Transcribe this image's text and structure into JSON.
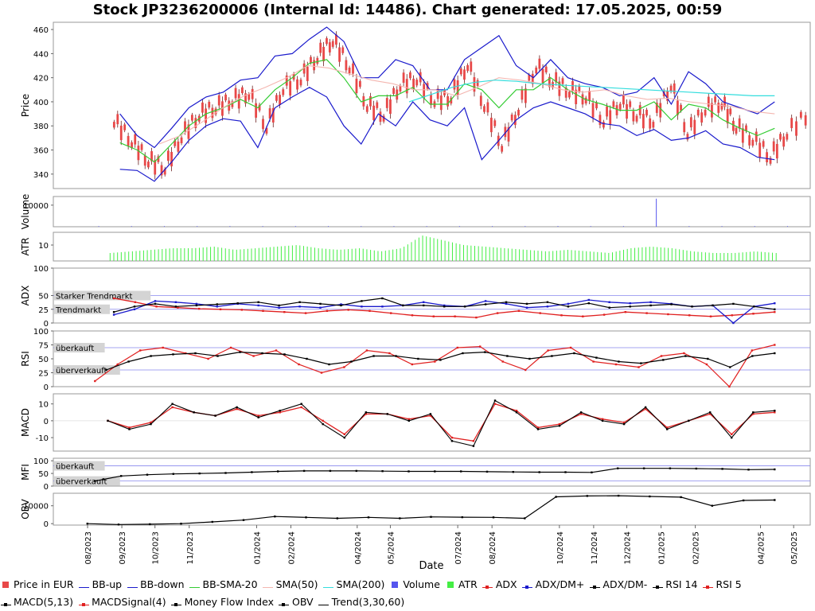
{
  "title": "Stock JP3236200006 (Internal Id: 14486). Chart generated: 17.05.2025, 00:59",
  "x_axis_label": "Date",
  "x_ticks": [
    "08/2023",
    "09/2023",
    "10/2023",
    "11/2023",
    "01/2024",
    "02/2024",
    "04/2024",
    "05/2024",
    "07/2024",
    "08/2024",
    "10/2024",
    "11/2024",
    "12/2024",
    "01/2025",
    "02/2025",
    "04/2025",
    "05/2025"
  ],
  "panels": {
    "price": {
      "ylabel": "Price",
      "ticks": [
        "340",
        "360",
        "380",
        "400",
        "420",
        "440",
        "460"
      ]
    },
    "volume": {
      "ylabel": "Volume",
      "ticks": [
        "10000"
      ]
    },
    "atr": {
      "ylabel": "ATR",
      "ticks": [
        "10"
      ]
    },
    "adx": {
      "ylabel": "ADX",
      "ticks": [
        "0",
        "25",
        "50",
        "100"
      ],
      "annotations": [
        "Starker Trendmarkt",
        "Trendmarkt"
      ]
    },
    "rsi": {
      "ylabel": "RSI",
      "ticks": [
        "0",
        "25",
        "50",
        "75",
        "100"
      ],
      "annotations": [
        "überkauft",
        "überverkauft"
      ]
    },
    "macd": {
      "ylabel": "MACD",
      "ticks": [
        "-10",
        "0",
        "10"
      ]
    },
    "mfi": {
      "ylabel": "MFI",
      "ticks": [
        "0",
        "50",
        "100"
      ],
      "annotations": [
        "überkauft",
        "überverkauft"
      ]
    },
    "obv": {
      "ylabel": "OBV",
      "ticks": [
        "0",
        "10000"
      ]
    }
  },
  "legend": [
    {
      "label": "Price in EUR",
      "color": "#e84848",
      "kind": "box"
    },
    {
      "label": "BB-up",
      "color": "#1a1acc",
      "kind": "line"
    },
    {
      "label": "BB-down",
      "color": "#1a1acc",
      "kind": "line"
    },
    {
      "label": "BB-SMA-20",
      "color": "#33cc33",
      "kind": "line"
    },
    {
      "label": "SMA(50)",
      "color": "#f4b6b0",
      "kind": "line"
    },
    {
      "label": "SMA(200)",
      "color": "#33dddd",
      "kind": "line"
    },
    {
      "label": "Volume",
      "color": "#5555ee",
      "kind": "box"
    },
    {
      "label": "ATR",
      "color": "#44ee44",
      "kind": "box"
    },
    {
      "label": "ADX",
      "color": "#e02020",
      "kind": "marker"
    },
    {
      "label": "ADX/DM+",
      "color": "#1a1acc",
      "kind": "marker"
    },
    {
      "label": "ADX/DM-",
      "color": "#000000",
      "kind": "marker"
    },
    {
      "label": "RSI 14",
      "color": "#000000",
      "kind": "marker"
    },
    {
      "label": "RSI 5",
      "color": "#e02020",
      "kind": "marker"
    },
    {
      "label": "MACD(5,13)",
      "color": "#000000",
      "kind": "marker"
    },
    {
      "label": "MACDSignal(4)",
      "color": "#e02020",
      "kind": "marker"
    },
    {
      "label": "Money Flow Index",
      "color": "#000000",
      "kind": "marker"
    },
    {
      "label": "OBV",
      "color": "#000000",
      "kind": "marker"
    },
    {
      "label": "Trend(3,30,60)",
      "color": "#000000",
      "kind": "line"
    }
  ],
  "chart_data": {
    "type": "line",
    "title": "Stock JP3236200006 (Internal Id: 14486). Chart generated: 17.05.2025, 00:59",
    "xlabel": "Date",
    "x_range": [
      "2023-07-01",
      "2025-05-16"
    ],
    "price_ylim": [
      328,
      466
    ],
    "close_series": {
      "dates": [
        "2023-08-25",
        "2023-09-10",
        "2023-09-25",
        "2023-10-10",
        "2023-10-25",
        "2023-11-10",
        "2023-11-25",
        "2023-12-10",
        "2023-12-25",
        "2024-01-10",
        "2024-01-25",
        "2024-02-10",
        "2024-02-25",
        "2024-03-10",
        "2024-03-25",
        "2024-04-10",
        "2024-04-25",
        "2024-05-10",
        "2024-05-25",
        "2024-06-10",
        "2024-06-25",
        "2024-07-10",
        "2024-07-25",
        "2024-08-10",
        "2024-08-25",
        "2024-09-10",
        "2024-09-25",
        "2024-10-10",
        "2024-10-25",
        "2024-11-10",
        "2024-11-25",
        "2024-12-10",
        "2024-12-25",
        "2025-01-10",
        "2025-01-25",
        "2025-02-10",
        "2025-02-25",
        "2025-03-10",
        "2025-03-25",
        "2025-04-10",
        "2025-04-25",
        "2025-05-16"
      ],
      "values": [
        385,
        368,
        352,
        346,
        372,
        390,
        396,
        402,
        408,
        380,
        412,
        420,
        438,
        452,
        430,
        398,
        390,
        415,
        420,
        402,
        405,
        432,
        398,
        365,
        395,
        430,
        418,
        410,
        405,
        385,
        400,
        390,
        385,
        415,
        375,
        395,
        400,
        380,
        370,
        355,
        375,
        392
      ]
    },
    "series": [
      {
        "name": "BB-up",
        "values": [
          390,
          372,
          362,
          378,
          395,
          404,
          408,
          418,
          420,
          438,
          440,
          452,
          462,
          450,
          420,
          420,
          435,
          430,
          410,
          410,
          435,
          445,
          455,
          430,
          420,
          435,
          420,
          415,
          412,
          405,
          408,
          420,
          398,
          425,
          415,
          400,
          395,
          390,
          400
        ]
      },
      {
        "name": "BB-down",
        "values": [
          344,
          343,
          334,
          350,
          368,
          380,
          386,
          384,
          362,
          395,
          404,
          412,
          404,
          380,
          365,
          390,
          380,
          400,
          385,
          380,
          395,
          352,
          368,
          385,
          395,
          400,
          395,
          390,
          382,
          380,
          372,
          377,
          368,
          370,
          376,
          365,
          362,
          354,
          352
        ]
      },
      {
        "name": "BB-SMA-20",
        "values": [
          366,
          360,
          350,
          365,
          380,
          390,
          395,
          402,
          395,
          410,
          420,
          432,
          435,
          420,
          400,
          405,
          405,
          412,
          398,
          398,
          415,
          410,
          395,
          410,
          410,
          420,
          410,
          402,
          398,
          393,
          393,
          400,
          385,
          398,
          395,
          385,
          378,
          372,
          378
        ]
      },
      {
        "name": "SMA(50)",
        "values": [
          365,
          372,
          383,
          395,
          405,
          412,
          420,
          430,
          428,
          423,
          418,
          415,
          410,
          410,
          405,
          412,
          420,
          418,
          415,
          410,
          408,
          410,
          405,
          402,
          403,
          400,
          398,
          396,
          392,
          390
        ]
      },
      {
        "name": "SMA(200)",
        "values": [
          400,
          406,
          412,
          416,
          418,
          417,
          415,
          414,
          413,
          412,
          411,
          410,
          409,
          408,
          407,
          406,
          405,
          405
        ]
      },
      {
        "name": "ADX",
        "values": [
          45,
          38,
          30,
          28,
          26,
          25,
          24,
          22,
          20,
          18,
          22,
          24,
          22,
          18,
          14,
          12,
          12,
          10,
          18,
          22,
          18,
          14,
          12,
          15,
          20,
          18,
          16,
          14,
          12,
          14,
          17,
          20
        ]
      },
      {
        "name": "ADX/DM+",
        "values": [
          15,
          25,
          40,
          38,
          35,
          30,
          35,
          32,
          28,
          30,
          28,
          34,
          30,
          30,
          32,
          38,
          32,
          30,
          40,
          35,
          28,
          30,
          35,
          42,
          38,
          36,
          38,
          35,
          30,
          32,
          0,
          30,
          36
        ]
      },
      {
        "name": "ADX/DM-",
        "values": [
          20,
          30,
          35,
          30,
          32,
          34,
          36,
          38,
          32,
          38,
          35,
          32,
          40,
          45,
          32,
          32,
          30,
          30,
          34,
          38,
          35,
          38,
          30,
          36,
          28,
          30,
          32,
          34,
          30,
          32,
          35,
          30,
          25
        ]
      },
      {
        "name": "RSI 14",
        "values": [
          30,
          45,
          55,
          58,
          60,
          55,
          62,
          60,
          58,
          50,
          40,
          45,
          55,
          55,
          50,
          48,
          60,
          62,
          55,
          50,
          55,
          60,
          52,
          45,
          42,
          48,
          55,
          50,
          35,
          55,
          60
        ]
      },
      {
        "name": "RSI 5",
        "values": [
          10,
          40,
          65,
          70,
          60,
          50,
          70,
          55,
          65,
          40,
          25,
          35,
          65,
          60,
          40,
          45,
          70,
          72,
          45,
          30,
          65,
          70,
          45,
          40,
          35,
          55,
          60,
          40,
          0,
          65,
          75
        ]
      },
      {
        "name": "MACD(5,13)",
        "values": [
          0,
          -5,
          -2,
          10,
          5,
          3,
          8,
          2,
          6,
          10,
          -2,
          -10,
          5,
          4,
          0,
          4,
          -12,
          -15,
          12,
          5,
          -5,
          -3,
          5,
          0,
          -2,
          8,
          -5,
          0,
          5,
          -10,
          5,
          6
        ]
      },
      {
        "name": "MACDSignal(4)",
        "values": [
          0,
          -4,
          -1,
          8,
          5,
          3,
          7,
          3,
          5,
          8,
          0,
          -8,
          4,
          4,
          1,
          3,
          -10,
          -12,
          10,
          6,
          -4,
          -2,
          4,
          1,
          -1,
          7,
          -4,
          0,
          4,
          -8,
          4,
          5
        ]
      },
      {
        "name": "Money Flow Index",
        "values": [
          20,
          40,
          45,
          48,
          50,
          52,
          55,
          58,
          60,
          60,
          60,
          59,
          58,
          58,
          58,
          57,
          56,
          55,
          55,
          54,
          70,
          70,
          70,
          69,
          68,
          65,
          66
        ]
      },
      {
        "name": "OBV",
        "values": [
          0,
          -500,
          -300,
          0,
          1000,
          2000,
          4000,
          3500,
          3000,
          3500,
          3000,
          3800,
          3600,
          3500,
          3000,
          15000,
          15500,
          15600,
          15200,
          14800,
          10000,
          13000,
          13200
        ]
      },
      {
        "name": "Volume",
        "values": [
          0,
          0,
          0,
          0,
          0,
          0,
          0,
          0,
          0,
          0,
          0,
          0,
          0,
          0,
          0,
          0,
          0,
          13000,
          0,
          0,
          0,
          0
        ]
      },
      {
        "name": "ATR",
        "values": [
          5,
          6,
          7,
          8,
          8,
          9,
          7,
          8,
          9,
          10,
          8,
          7,
          8,
          6,
          8,
          16,
          13,
          10,
          9,
          8,
          7,
          6,
          7,
          6,
          5,
          8,
          9,
          8,
          6,
          5,
          5,
          6,
          5
        ]
      }
    ],
    "reference_lines": {
      "adx": [
        25,
        50
      ],
      "rsi": [
        30,
        70
      ],
      "mfi": [
        20,
        80
      ]
    },
    "grid": false,
    "legend_position": "bottom"
  }
}
